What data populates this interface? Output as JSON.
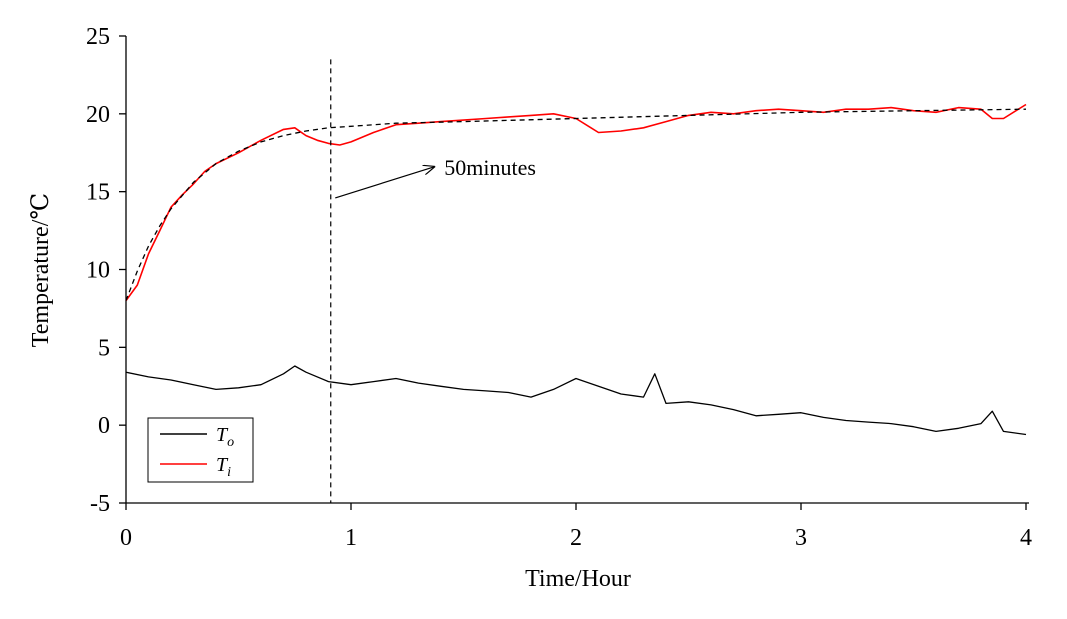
{
  "chart_data": {
    "type": "line",
    "title": "",
    "xlabel": "Time/Hour",
    "ylabel": "Temperature/℃",
    "xlim": [
      0,
      4
    ],
    "ylim": [
      -5,
      25
    ],
    "xticks": [
      0,
      1,
      2,
      3,
      4
    ],
    "yticks": [
      -5,
      0,
      5,
      10,
      15,
      20,
      25
    ],
    "grid": false,
    "legend_position": "bottom-left",
    "legend": [
      {
        "base": "T",
        "sub": "o",
        "color": "#000000"
      },
      {
        "base": "T",
        "sub": "i",
        "color": "#ff0000"
      }
    ],
    "series": [
      {
        "name": "To",
        "color": "#000000",
        "x": [
          0,
          0.1,
          0.2,
          0.3,
          0.4,
          0.5,
          0.6,
          0.7,
          0.75,
          0.8,
          0.9,
          1.0,
          1.1,
          1.2,
          1.3,
          1.4,
          1.5,
          1.6,
          1.7,
          1.8,
          1.9,
          2.0,
          2.1,
          2.2,
          2.3,
          2.35,
          2.4,
          2.5,
          2.6,
          2.7,
          2.8,
          2.9,
          3.0,
          3.1,
          3.2,
          3.3,
          3.4,
          3.5,
          3.6,
          3.7,
          3.8,
          3.85,
          3.9,
          4.0
        ],
        "y": [
          3.4,
          3.1,
          2.9,
          2.6,
          2.3,
          2.4,
          2.6,
          3.3,
          3.8,
          3.4,
          2.8,
          2.6,
          2.8,
          3.0,
          2.7,
          2.5,
          2.3,
          2.2,
          2.1,
          1.8,
          2.3,
          3.0,
          2.5,
          2.0,
          1.8,
          3.3,
          1.4,
          1.5,
          1.3,
          1.0,
          0.6,
          0.7,
          0.8,
          0.5,
          0.3,
          0.2,
          0.1,
          -0.1,
          -0.4,
          -0.2,
          0.1,
          0.9,
          -0.4,
          -0.6
        ]
      },
      {
        "name": "Ti",
        "color": "#ff0000",
        "x": [
          0,
          0.05,
          0.1,
          0.15,
          0.2,
          0.25,
          0.3,
          0.35,
          0.4,
          0.5,
          0.6,
          0.7,
          0.75,
          0.8,
          0.85,
          0.9,
          0.95,
          1.0,
          1.1,
          1.2,
          1.3,
          1.4,
          1.5,
          1.6,
          1.7,
          1.8,
          1.9,
          2.0,
          2.1,
          2.2,
          2.3,
          2.4,
          2.5,
          2.6,
          2.7,
          2.8,
          2.9,
          3.0,
          3.1,
          3.2,
          3.3,
          3.4,
          3.5,
          3.6,
          3.7,
          3.8,
          3.85,
          3.9,
          4.0
        ],
        "y": [
          8.0,
          9.0,
          11.0,
          12.5,
          14.0,
          14.8,
          15.5,
          16.3,
          16.8,
          17.5,
          18.3,
          19.0,
          19.1,
          18.6,
          18.3,
          18.1,
          18.0,
          18.2,
          18.8,
          19.3,
          19.4,
          19.5,
          19.6,
          19.7,
          19.8,
          19.9,
          20.0,
          19.7,
          18.8,
          18.9,
          19.1,
          19.5,
          19.9,
          20.1,
          20.0,
          20.2,
          20.3,
          20.2,
          20.1,
          20.3,
          20.3,
          20.4,
          20.2,
          20.1,
          20.4,
          20.3,
          19.7,
          19.7,
          20.6
        ]
      },
      {
        "name": "",
        "color": "#000000",
        "x": [
          0,
          0.05,
          0.1,
          0.15,
          0.2,
          0.3,
          0.4,
          0.5,
          0.6,
          0.7,
          0.8,
          0.9,
          1.0,
          1.2,
          1.5,
          2.0,
          2.5,
          3.0,
          3.5,
          4.0
        ],
        "y": [
          8.0,
          9.9,
          11.5,
          12.8,
          13.9,
          15.6,
          16.8,
          17.6,
          18.2,
          18.6,
          18.9,
          19.1,
          19.2,
          19.4,
          19.5,
          19.7,
          19.9,
          20.1,
          20.2,
          20.3
        ]
      }
    ],
    "vertical_line_x": 0.91,
    "annotation": {
      "text": "50minutes",
      "arrow_from": [
        0.93,
        14.6
      ],
      "arrow_to": [
        1.37,
        16.6
      ]
    }
  }
}
